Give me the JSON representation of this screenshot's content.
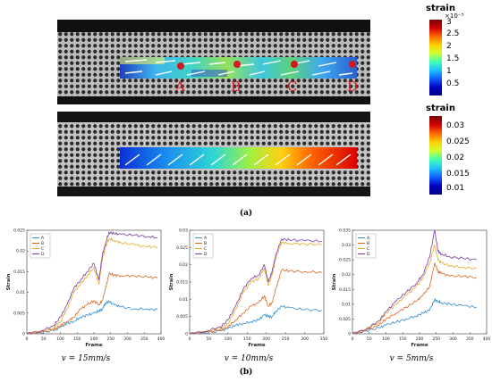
{
  "panel_a": {
    "label": "(a)",
    "point_labels": [
      "A",
      "B",
      "C",
      "D"
    ],
    "colorbar_top": {
      "title": "strain",
      "exponent": "×10⁻³",
      "ticks": [
        "3",
        "2.5",
        "2",
        "1.5",
        "1",
        "0.5"
      ]
    },
    "colorbar_bottom": {
      "title": "strain",
      "ticks": [
        "0.03",
        "0.025",
        "0.02",
        "0.015",
        "0.01"
      ]
    }
  },
  "panel_b": {
    "label": "(b)"
  },
  "colors": {
    "A": "#2f8fd1",
    "B": "#d9651f",
    "C": "#e3a82a",
    "D": "#7b3aa0",
    "point_labels": "#d21a1a"
  },
  "chart_data": [
    {
      "type": "line",
      "speed_label": "v = 15mm/s",
      "xlabel": "Frame",
      "ylabel": "Strain",
      "xlim": [
        0,
        400
      ],
      "ylim": [
        0,
        0.025
      ],
      "xticks": [
        "0",
        "50",
        "100",
        "150",
        "200",
        "250",
        "300",
        "350",
        "400"
      ],
      "yticks": [
        "0",
        "0.005",
        "0.01",
        "0.015",
        "0.02",
        "0.025"
      ],
      "ytick_values": [
        0,
        0.005,
        0.01,
        0.015,
        0.02,
        0.025
      ],
      "legend": "top-left",
      "x": [
        0,
        40,
        80,
        100,
        120,
        140,
        160,
        180,
        200,
        215,
        225,
        235,
        245,
        260,
        280,
        320,
        360,
        390
      ],
      "series": [
        {
          "name": "A",
          "values": [
            0,
            0.0003,
            0.0008,
            0.0015,
            0.0025,
            0.003,
            0.004,
            0.0045,
            0.005,
            0.0055,
            0.006,
            0.0075,
            0.0078,
            0.007,
            0.0065,
            0.006,
            0.006,
            0.0058
          ]
        },
        {
          "name": "B",
          "values": [
            0,
            0.0003,
            0.001,
            0.002,
            0.003,
            0.004,
            0.006,
            0.007,
            0.008,
            0.007,
            0.008,
            0.011,
            0.0145,
            0.0142,
            0.014,
            0.014,
            0.0137,
            0.0135
          ]
        },
        {
          "name": "C",
          "values": [
            0,
            0.0005,
            0.0015,
            0.003,
            0.006,
            0.01,
            0.012,
            0.014,
            0.016,
            0.012,
            0.018,
            0.021,
            0.023,
            0.0225,
            0.022,
            0.0215,
            0.021,
            0.021
          ]
        },
        {
          "name": "D",
          "values": [
            0,
            0.0006,
            0.002,
            0.004,
            0.007,
            0.011,
            0.013,
            0.015,
            0.017,
            0.013,
            0.019,
            0.022,
            0.0245,
            0.0242,
            0.024,
            0.0238,
            0.0235,
            0.0232
          ]
        }
      ]
    },
    {
      "type": "line",
      "speed_label": "v = 10mm/s",
      "xlabel": "Frame",
      "ylabel": "Strain",
      "xlim": [
        0,
        350
      ],
      "ylim": [
        0,
        0.03
      ],
      "xticks": [
        "0",
        "50",
        "100",
        "150",
        "200",
        "250",
        "300",
        "350"
      ],
      "yticks": [
        "0",
        "0.005",
        "0.01",
        "0.015",
        "0.02",
        "0.025",
        "0.03"
      ],
      "ytick_values": [
        0,
        0.005,
        0.01,
        0.015,
        0.02,
        0.025,
        0.03
      ],
      "legend": "top-left",
      "x": [
        0,
        40,
        80,
        100,
        120,
        140,
        160,
        180,
        195,
        205,
        215,
        225,
        240,
        260,
        300,
        345
      ],
      "series": [
        {
          "name": "A",
          "values": [
            0,
            0.0003,
            0.0008,
            0.0015,
            0.0025,
            0.003,
            0.0035,
            0.004,
            0.0055,
            0.005,
            0.005,
            0.0065,
            0.008,
            0.0075,
            0.007,
            0.0068
          ]
        },
        {
          "name": "B",
          "values": [
            0,
            0.0004,
            0.001,
            0.002,
            0.004,
            0.006,
            0.008,
            0.009,
            0.011,
            0.008,
            0.009,
            0.013,
            0.0185,
            0.0182,
            0.018,
            0.0178
          ]
        },
        {
          "name": "C",
          "values": [
            0,
            0.0006,
            0.0015,
            0.003,
            0.007,
            0.012,
            0.015,
            0.016,
            0.019,
            0.014,
            0.017,
            0.022,
            0.0265,
            0.0262,
            0.026,
            0.0258
          ]
        },
        {
          "name": "D",
          "values": [
            0,
            0.0007,
            0.002,
            0.004,
            0.008,
            0.013,
            0.016,
            0.017,
            0.02,
            0.015,
            0.018,
            0.023,
            0.0275,
            0.0272,
            0.027,
            0.0268
          ]
        }
      ]
    },
    {
      "type": "line",
      "speed_label": "v = 5mm/s",
      "xlabel": "Frame",
      "ylabel": "Strain",
      "xlim": [
        0,
        400
      ],
      "ylim": [
        0,
        0.035
      ],
      "xticks": [
        "0",
        "50",
        "100",
        "150",
        "200",
        "250",
        "300",
        "350",
        "400"
      ],
      "yticks": [
        "0",
        "0.005",
        "0.01",
        "0.015",
        "0.02",
        "0.025",
        "0.03",
        "0.035"
      ],
      "ytick_values": [
        0,
        0.005,
        0.01,
        0.015,
        0.02,
        0.025,
        0.03,
        0.035
      ],
      "legend": "top-left",
      "x": [
        0,
        40,
        80,
        100,
        130,
        160,
        190,
        210,
        230,
        245,
        255,
        265,
        290,
        330,
        370
      ],
      "series": [
        {
          "name": "A",
          "values": [
            0,
            0.001,
            0.002,
            0.003,
            0.004,
            0.005,
            0.006,
            0.007,
            0.008,
            0.0115,
            0.011,
            0.0105,
            0.01,
            0.0095,
            0.009
          ]
        },
        {
          "name": "B",
          "values": [
            0,
            0.001,
            0.003,
            0.005,
            0.007,
            0.009,
            0.011,
            0.013,
            0.016,
            0.024,
            0.021,
            0.0205,
            0.0195,
            0.0195,
            0.019
          ]
        },
        {
          "name": "C",
          "values": [
            0,
            0.0015,
            0.004,
            0.007,
            0.01,
            0.013,
            0.016,
            0.019,
            0.024,
            0.03,
            0.025,
            0.024,
            0.023,
            0.0225,
            0.022
          ]
        },
        {
          "name": "D",
          "values": [
            0,
            0.0015,
            0.0045,
            0.0075,
            0.011,
            0.014,
            0.017,
            0.02,
            0.026,
            0.035,
            0.028,
            0.027,
            0.026,
            0.0255,
            0.025
          ]
        }
      ]
    }
  ]
}
